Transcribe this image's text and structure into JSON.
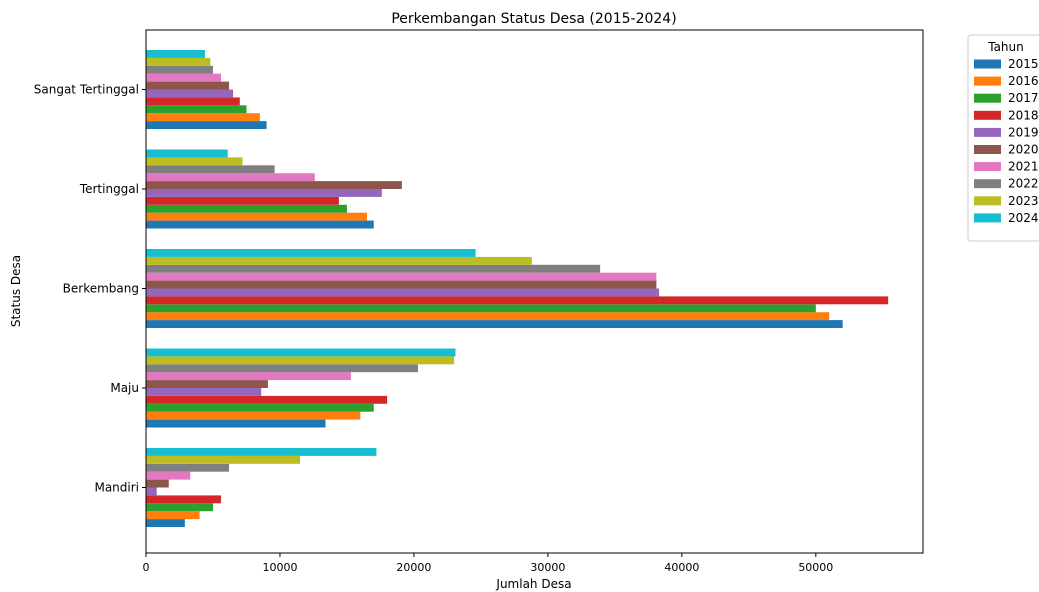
{
  "chart_data": {
    "type": "bar",
    "orientation": "horizontal",
    "title": "Perkembangan Status Desa (2015-2024)",
    "xlabel": "Jumlah Desa",
    "ylabel": "Status Desa",
    "xlim": [
      0,
      58000
    ],
    "x_ticks": [
      0,
      10000,
      20000,
      30000,
      40000,
      50000
    ],
    "categories": [
      "Mandiri",
      "Maju",
      "Berkembang",
      "Tertinggal",
      "Sangat Tertinggal"
    ],
    "grid": false,
    "legend": {
      "title": "Tahun",
      "placement": "outside-right-top"
    },
    "series": [
      {
        "name": "2015",
        "color": "#1f77b4",
        "values": [
          2900,
          13400,
          52000,
          17000,
          9000
        ]
      },
      {
        "name": "2016",
        "color": "#ff7f0e",
        "values": [
          4000,
          16000,
          51000,
          16500,
          8500
        ]
      },
      {
        "name": "2017",
        "color": "#2ca02c",
        "values": [
          5000,
          17000,
          50000,
          15000,
          7500
        ]
      },
      {
        "name": "2018",
        "color": "#d62728",
        "values": [
          5600,
          18000,
          55400,
          14400,
          7000
        ]
      },
      {
        "name": "2019",
        "color": "#9467bd",
        "values": [
          800,
          8600,
          38300,
          17600,
          6500
        ]
      },
      {
        "name": "2020",
        "color": "#8c564b",
        "values": [
          1700,
          9100,
          38100,
          19100,
          6200
        ]
      },
      {
        "name": "2021",
        "color": "#e377c2",
        "values": [
          3300,
          15300,
          38100,
          12600,
          5600
        ]
      },
      {
        "name": "2022",
        "color": "#7f7f7f",
        "values": [
          6200,
          20300,
          33900,
          9600,
          5000
        ]
      },
      {
        "name": "2023",
        "color": "#bcbd22",
        "values": [
          11500,
          23000,
          28800,
          7200,
          4800
        ]
      },
      {
        "name": "2024",
        "color": "#17becf",
        "values": [
          17200,
          23100,
          24600,
          6100,
          4400
        ]
      }
    ]
  }
}
